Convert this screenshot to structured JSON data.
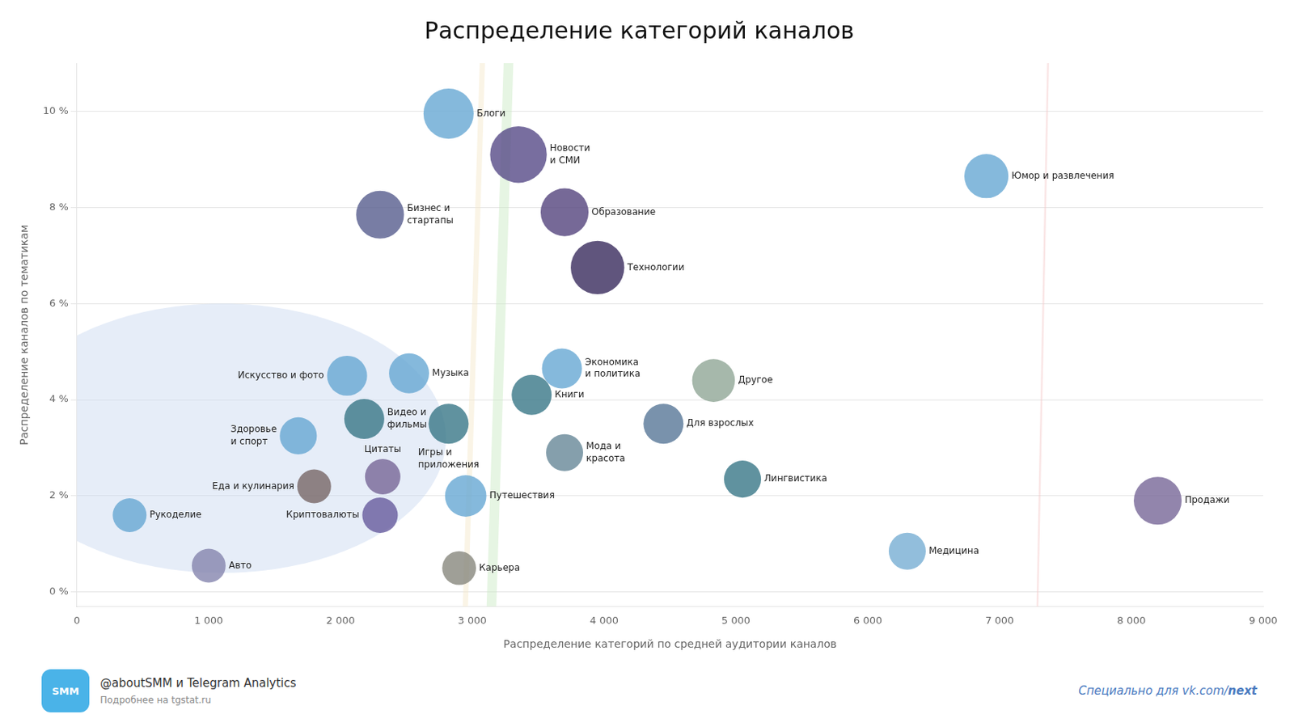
{
  "chart_data": {
    "type": "bubble",
    "title": "Распределение категорий каналов",
    "xlabel": "Распределение категорий по средней аудитории каналов",
    "ylabel": "Распределение каналов по тематикам",
    "xlim": [
      0,
      9000
    ],
    "ylim": [
      -0.3,
      11.0
    ],
    "xticks": [
      0,
      {
        "value": 1000,
        "label": "1 000"
      },
      {
        "value": 2000,
        "label": "2 000"
      },
      {
        "value": 3000,
        "label": "3 000"
      },
      {
        "value": 4000,
        "label": "4 000"
      },
      {
        "value": 5000,
        "label": "5 000"
      },
      {
        "value": 6000,
        "label": "6 000"
      },
      {
        "value": 7000,
        "label": "7 000"
      },
      {
        "value": 8000,
        "label": "8 000"
      },
      {
        "value": 9000,
        "label": "9 000"
      }
    ],
    "yticks": [
      {
        "value": 0,
        "label": "0 %"
      },
      {
        "value": 2,
        "label": "2 %"
      },
      {
        "value": 4,
        "label": "4 %"
      },
      {
        "value": 6,
        "label": "6 %"
      },
      {
        "value": 8,
        "label": "8 %"
      },
      {
        "value": 10,
        "label": "10 %"
      }
    ],
    "grid": "y",
    "points": [
      {
        "name": "Блоги",
        "x": 2820,
        "y": 9.95,
        "size": 2200,
        "color": "#6aaad4"
      },
      {
        "name": "Новости\nи СМИ",
        "x": 3350,
        "y": 9.1,
        "size": 2800,
        "color": "#5a4e8a"
      },
      {
        "name": "Бизнес и\nстартапы",
        "x": 2300,
        "y": 7.85,
        "size": 2000,
        "color": "#5a6090"
      },
      {
        "name": "Образование",
        "x": 3700,
        "y": 7.9,
        "size": 2000,
        "color": "#584880"
      },
      {
        "name": "Технологии",
        "x": 3950,
        "y": 6.75,
        "size": 2500,
        "color": "#3d3060"
      },
      {
        "name": "Юмор и развлечения",
        "x": 6900,
        "y": 8.65,
        "size": 1700,
        "color": "#6aaad4"
      },
      {
        "name": "Музыка",
        "x": 2520,
        "y": 4.55,
        "size": 1400,
        "color": "#6aaad4"
      },
      {
        "name": "Искусство и фото",
        "x": 2050,
        "y": 4.5,
        "size": 1400,
        "color": "#6aaad4"
      },
      {
        "name": "Экономика\nи политика",
        "x": 3680,
        "y": 4.65,
        "size": 1400,
        "color": "#6aaad4"
      },
      {
        "name": "Другое",
        "x": 4830,
        "y": 4.4,
        "size": 1600,
        "color": "#92a898"
      },
      {
        "name": "Книги",
        "x": 3450,
        "y": 4.1,
        "size": 1400,
        "color": "#3d7a8a"
      },
      {
        "name": "Видео и\nфильмы",
        "x": 2180,
        "y": 3.6,
        "size": 1400,
        "color": "#3d7a8a"
      },
      {
        "name": "Игры и\nприложения",
        "x": 2820,
        "y": 3.5,
        "size": 1400,
        "color": "#3d7a8a"
      },
      {
        "name": "Для взрослых",
        "x": 4450,
        "y": 3.5,
        "size": 1400,
        "color": "#5b7a9a"
      },
      {
        "name": "Здоровье\nи спорт",
        "x": 1680,
        "y": 3.25,
        "size": 1200,
        "color": "#6aaad4"
      },
      {
        "name": "Мода и\nкрасота",
        "x": 3700,
        "y": 2.9,
        "size": 1200,
        "color": "#6a8a9a"
      },
      {
        "name": "Цитаты",
        "x": 2320,
        "y": 2.4,
        "size": 1100,
        "color": "#7a6a9a"
      },
      {
        "name": "Еда и кулинария",
        "x": 1800,
        "y": 2.2,
        "size": 1000,
        "color": "#7a6a6a"
      },
      {
        "name": "Путешествия",
        "x": 2950,
        "y": 2.0,
        "size": 1500,
        "color": "#6aaad4"
      },
      {
        "name": "Лингвистика",
        "x": 5050,
        "y": 2.35,
        "size": 1200,
        "color": "#3d7a8a"
      },
      {
        "name": "Криптовалюты",
        "x": 2300,
        "y": 1.6,
        "size": 1100,
        "color": "#6a5fa0"
      },
      {
        "name": "Рукоделие",
        "x": 400,
        "y": 1.6,
        "size": 1000,
        "color": "#6aaad4"
      },
      {
        "name": "Авто",
        "x": 1000,
        "y": 0.55,
        "size": 1000,
        "color": "#8888b0"
      },
      {
        "name": "Карьера",
        "x": 2900,
        "y": 0.5,
        "size": 1000,
        "color": "#8a8a80"
      },
      {
        "name": "Медицина",
        "x": 6300,
        "y": 0.85,
        "size": 1200,
        "color": "#7ab0d4"
      },
      {
        "name": "Продажи",
        "x": 8200,
        "y": 1.9,
        "size": 2000,
        "color": "#7a6a9a"
      }
    ],
    "clusters": [
      {
        "cx": 3050,
        "cy": 8.7,
        "rx": 950,
        "ry": 1.75,
        "angle": 5,
        "color": "#f5e6c8"
      },
      {
        "cx": 3200,
        "cy": 4.5,
        "rx": 2000,
        "ry": 3.2,
        "angle": 5,
        "color": "#c8e8c0"
      },
      {
        "cx": 1100,
        "cy": 3.2,
        "rx": 1700,
        "ry": 2.8,
        "angle": 0,
        "color": "#c8d8f0"
      },
      {
        "cx": 7300,
        "cy": 1.5,
        "rx": 1700,
        "ry": 1.0,
        "angle": 8,
        "color": "#f5c8c8"
      }
    ],
    "footer": {
      "badge": "SMM",
      "badge_color": "#4ab3e8",
      "left_title": "@aboutSMM и Telegram Analytics",
      "left_sub": "Подробнее на tgstat.ru",
      "right": "Специально для vk.com/",
      "right_bold": "next",
      "right_color": "#4a7abf"
    }
  }
}
